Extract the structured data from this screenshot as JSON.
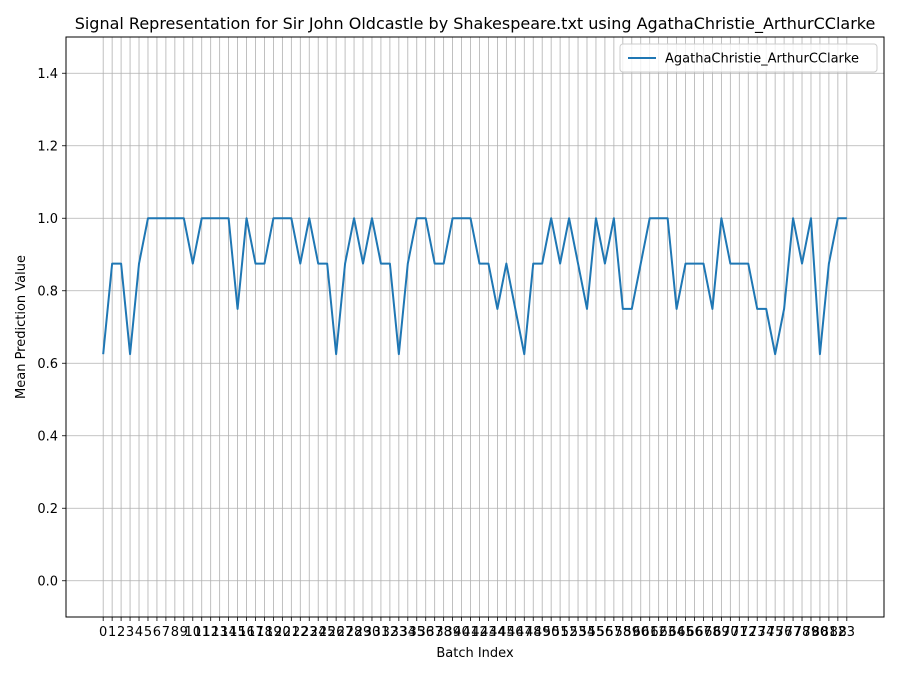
{
  "chart_data": {
    "type": "line",
    "title": "Signal Representation for Sir John Oldcastle by Shakespeare.txt using AgathaChristie_ArthurCClarke",
    "xlabel": "Batch Index",
    "ylabel": "Mean Prediction Value",
    "xlim": [
      -4.15,
      87.15
    ],
    "ylim": [
      -0.1,
      1.5
    ],
    "yticks": [
      0.0,
      0.2,
      0.4,
      0.6,
      0.8,
      1.0,
      1.2,
      1.4
    ],
    "ytick_labels": [
      "0.0",
      "0.2",
      "0.4",
      "0.6",
      "0.8",
      "1.0",
      "1.2",
      "1.4"
    ],
    "grid": true,
    "legend": "top-right",
    "x": [
      0,
      1,
      2,
      3,
      4,
      5,
      6,
      7,
      8,
      9,
      10,
      11,
      12,
      13,
      14,
      15,
      16,
      17,
      18,
      19,
      20,
      21,
      22,
      23,
      24,
      25,
      26,
      27,
      28,
      29,
      30,
      31,
      32,
      33,
      34,
      35,
      36,
      37,
      38,
      39,
      40,
      41,
      42,
      43,
      44,
      45,
      46,
      47,
      48,
      49,
      50,
      51,
      52,
      53,
      54,
      55,
      56,
      57,
      58,
      59,
      60,
      61,
      62,
      63,
      64,
      65,
      66,
      67,
      68,
      69,
      70,
      71,
      72,
      73,
      74,
      75,
      76,
      77,
      78,
      79,
      80,
      81,
      82,
      83
    ],
    "series": [
      {
        "name": "AgathaChristie_ArthurCClarke",
        "color": "#1f77b4",
        "values": [
          0.625,
          0.875,
          0.875,
          0.625,
          0.875,
          1.0,
          1.0,
          1.0,
          1.0,
          1.0,
          0.875,
          1.0,
          1.0,
          1.0,
          1.0,
          0.75,
          1.0,
          0.875,
          0.875,
          1.0,
          1.0,
          1.0,
          0.875,
          1.0,
          0.875,
          0.875,
          0.625,
          0.875,
          1.0,
          0.875,
          1.0,
          0.875,
          0.875,
          0.625,
          0.875,
          1.0,
          1.0,
          0.875,
          0.875,
          1.0,
          1.0,
          1.0,
          0.875,
          0.875,
          0.75,
          0.875,
          0.75,
          0.625,
          0.875,
          0.875,
          1.0,
          0.875,
          1.0,
          0.875,
          0.75,
          1.0,
          0.875,
          1.0,
          0.75,
          0.75,
          0.875,
          1.0,
          1.0,
          1.0,
          0.75,
          0.875,
          0.875,
          0.875,
          0.75,
          1.0,
          0.875,
          0.875,
          0.875,
          0.75,
          0.75,
          0.625,
          0.75,
          1.0,
          0.875,
          1.0,
          0.625,
          0.875,
          1.0,
          1.0
        ]
      }
    ]
  }
}
